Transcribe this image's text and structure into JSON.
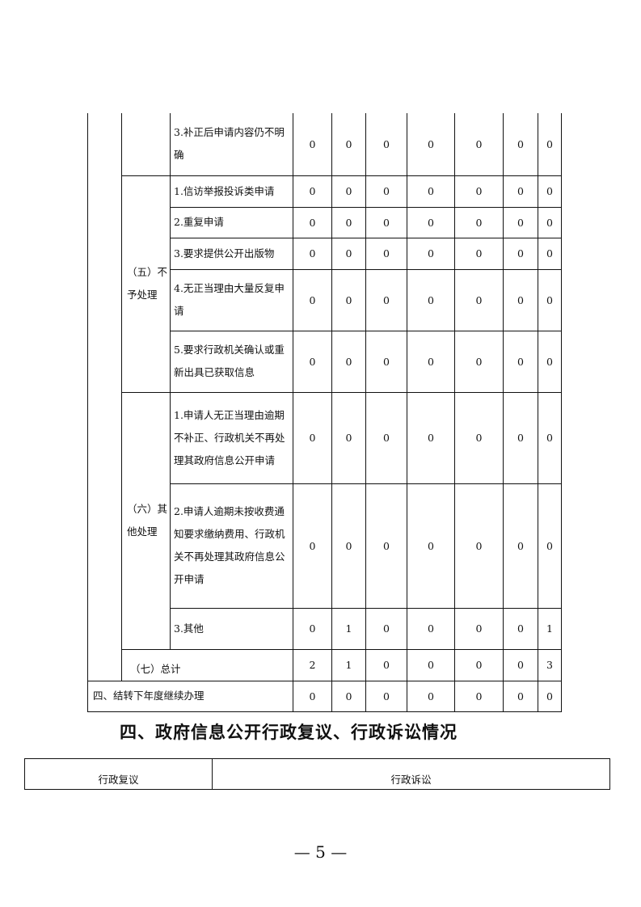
{
  "table": {
    "rows_group_unclear": {
      "item": "3.补正后申请内容仍不明确",
      "values": [
        "0",
        "0",
        "0",
        "0",
        "0",
        "0",
        "0"
      ]
    },
    "group5": {
      "label": "（五）不予处理",
      "rows": [
        {
          "item": "1.信访举报投诉类申请",
          "values": [
            "0",
            "0",
            "0",
            "0",
            "0",
            "0",
            "0"
          ]
        },
        {
          "item": "2.重复申请",
          "values": [
            "0",
            "0",
            "0",
            "0",
            "0",
            "0",
            "0"
          ]
        },
        {
          "item": "3.要求提供公开出版物",
          "values": [
            "0",
            "0",
            "0",
            "0",
            "0",
            "0",
            "0"
          ]
        },
        {
          "item": "4.无正当理由大量反复申请",
          "values": [
            "0",
            "0",
            "0",
            "0",
            "0",
            "0",
            "0"
          ]
        },
        {
          "item": "5.要求行政机关确认或重新出具已获取信息",
          "values": [
            "0",
            "0",
            "0",
            "0",
            "0",
            "0",
            "0"
          ]
        }
      ]
    },
    "group6": {
      "label": "（六）其他处理",
      "rows": [
        {
          "item": "1.申请人无正当理由逾期不补正、行政机关不再处理其政府信息公开申请",
          "values": [
            "0",
            "0",
            "0",
            "0",
            "0",
            "0",
            "0"
          ]
        },
        {
          "item": "2.申请人逾期未按收费通知要求缴纳费用、行政机关不再处理其政府信息公开申请",
          "values": [
            "0",
            "0",
            "0",
            "0",
            "0",
            "0",
            "0"
          ]
        },
        {
          "item": "3.其他",
          "values": [
            "0",
            "1",
            "0",
            "0",
            "0",
            "0",
            "1"
          ]
        }
      ]
    },
    "total": {
      "label": "（七）总计",
      "values": [
        "2",
        "1",
        "0",
        "0",
        "0",
        "0",
        "3"
      ]
    },
    "carryover": {
      "label": "四、结转下年度继续办理",
      "values": [
        "0",
        "0",
        "0",
        "0",
        "0",
        "0",
        "0"
      ]
    }
  },
  "section_heading": "四、政府信息公开行政复议、行政诉讼情况",
  "review_table": {
    "col1": "行政复议",
    "col2": "行政诉讼"
  },
  "page_number": "— 5 —"
}
